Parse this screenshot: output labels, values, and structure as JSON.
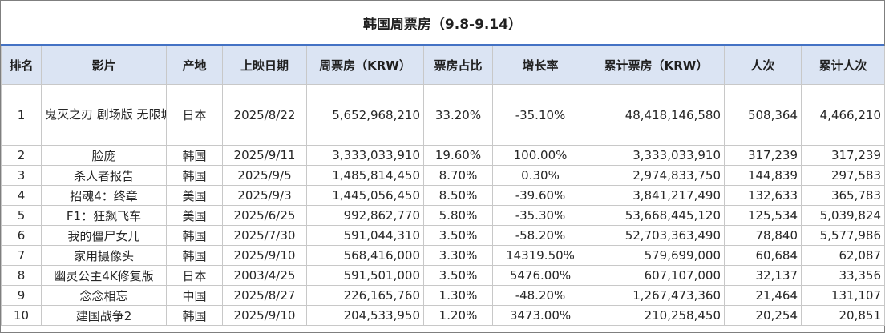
{
  "title": "韩国周票房（9.8-9.14）",
  "accent_color": "#4472c4",
  "header_bg": "#dbe4f3",
  "highlight_color": "#2e75b6",
  "columns": [
    "排名",
    "影片",
    "产地",
    "上映日期",
    "周票房（KRW）",
    "票房占比",
    "增长率",
    "累计票房（KRW）",
    "人次",
    "累计人次"
  ],
  "rows": [
    {
      "rank": "1",
      "film": "鬼灭之刃 剧场版 无限城篇 第一章 猗窝座再来",
      "origin": "日本",
      "release": "2025/8/22",
      "weekly": "5,652,968,210",
      "share": "33.20%",
      "growth": "-35.10%",
      "total": "48,418,146,580",
      "admissions": "508,364",
      "total_admissions": "4,466,210",
      "new_entry": false
    },
    {
      "rank": "2",
      "film": "脸庞",
      "origin": "韩国",
      "release": "2025/9/11",
      "weekly": "3,333,033,910",
      "share": "19.60%",
      "growth": "100.00%",
      "total": "3,333,033,910",
      "admissions": "317,239",
      "total_admissions": "317,239",
      "new_entry": true
    },
    {
      "rank": "3",
      "film": "杀人者报告",
      "origin": "韩国",
      "release": "2025/9/5",
      "weekly": "1,485,814,450",
      "share": "8.70%",
      "growth": "0.30%",
      "total": "2,974,833,750",
      "admissions": "144,839",
      "total_admissions": "297,583",
      "new_entry": false
    },
    {
      "rank": "4",
      "film": "招魂4：终章",
      "origin": "美国",
      "release": "2025/9/3",
      "weekly": "1,445,056,450",
      "share": "8.50%",
      "growth": "-39.60%",
      "total": "3,841,217,490",
      "admissions": "132,633",
      "total_admissions": "365,783",
      "new_entry": false
    },
    {
      "rank": "5",
      "film": "F1：狂飙飞车",
      "origin": "美国",
      "release": "2025/6/25",
      "weekly": "992,862,770",
      "share": "5.80%",
      "growth": "-35.30%",
      "total": "53,668,445,120",
      "admissions": "125,534",
      "total_admissions": "5,039,824",
      "new_entry": false
    },
    {
      "rank": "6",
      "film": "我的僵尸女儿",
      "origin": "韩国",
      "release": "2025/7/30",
      "weekly": "591,044,310",
      "share": "3.50%",
      "growth": "-58.20%",
      "total": "52,703,363,490",
      "admissions": "78,840",
      "total_admissions": "5,577,986",
      "new_entry": false
    },
    {
      "rank": "7",
      "film": "家用摄像头",
      "origin": "韩国",
      "release": "2025/9/10",
      "weekly": "568,416,000",
      "share": "3.30%",
      "growth": "14319.50%",
      "total": "579,699,000",
      "admissions": "60,684",
      "total_admissions": "62,087",
      "new_entry": true
    },
    {
      "rank": "8",
      "film": "幽灵公主4K修复版",
      "origin": "日本",
      "release": "2003/4/25",
      "weekly": "591,501,000",
      "share": "3.50%",
      "growth": "5476.00%",
      "total": "607,107,000",
      "admissions": "32,137",
      "total_admissions": "33,356",
      "new_entry": true
    },
    {
      "rank": "9",
      "film": "念念相忘",
      "origin": "中国",
      "release": "2025/8/27",
      "weekly": "226,165,760",
      "share": "1.30%",
      "growth": "-48.20%",
      "total": "1,267,473,360",
      "admissions": "21,464",
      "total_admissions": "131,107",
      "new_entry": false
    },
    {
      "rank": "10",
      "film": "建国战争2",
      "origin": "韩国",
      "release": "2025/9/10",
      "weekly": "204,533,950",
      "share": "1.20%",
      "growth": "3473.00%",
      "total": "210,258,450",
      "admissions": "20,254",
      "total_admissions": "20,851",
      "new_entry": true
    }
  ]
}
